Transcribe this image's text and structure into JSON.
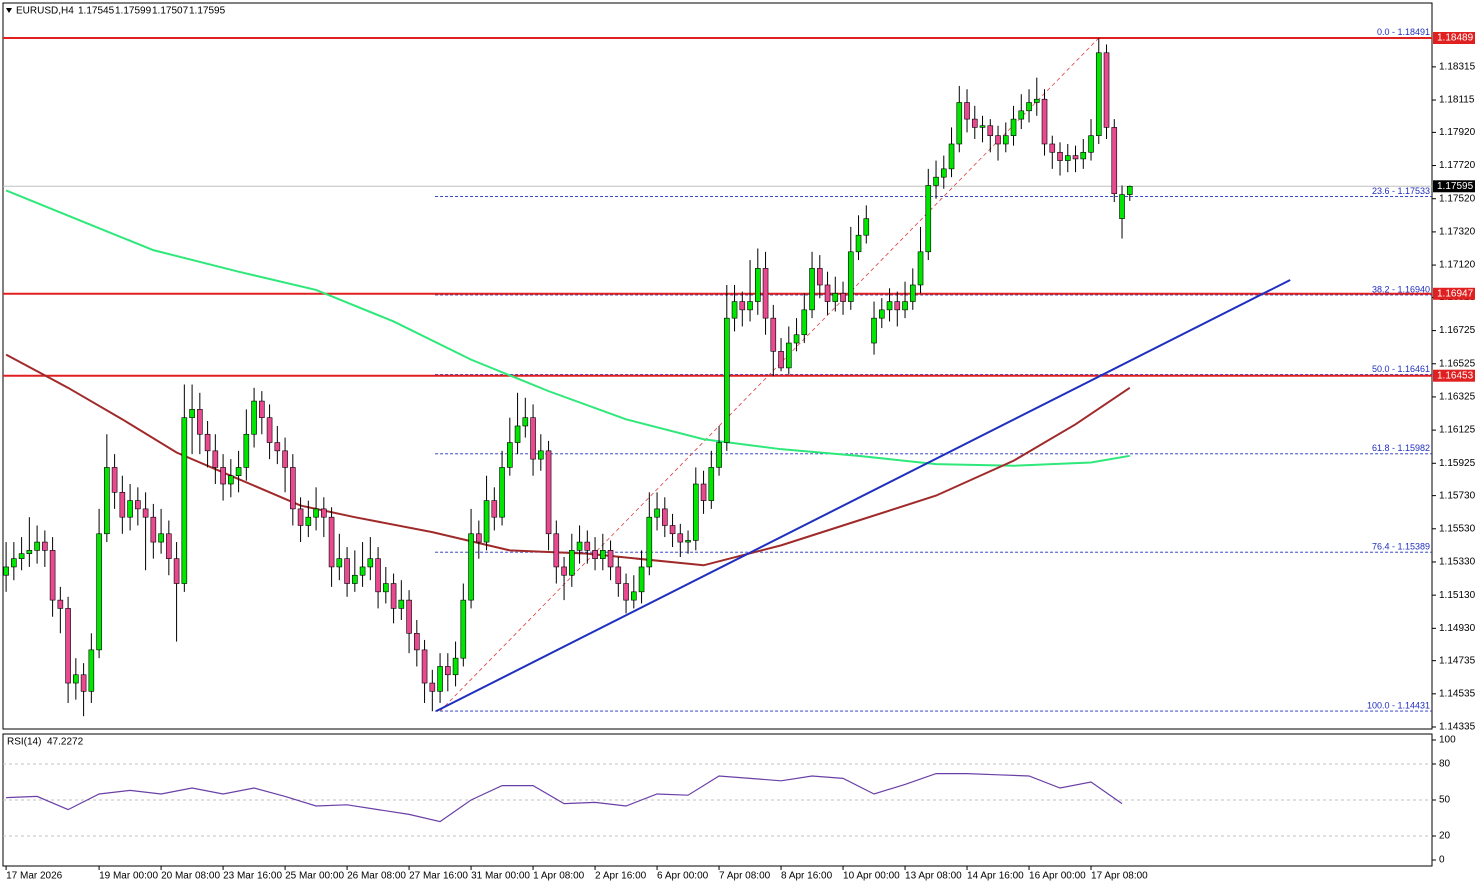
{
  "header": {
    "symbol": "EURUSD,H4"
  },
  "chart_data": {
    "type": "candlestick",
    "up_color": "#00e600",
    "down_color": "#e8498f",
    "xlim": [
      -0.4,
      184
    ],
    "ylim": [
      1.14323,
      1.187
    ],
    "yticks": [
      1.18315,
      1.18115,
      {
        "value": 1.1792,
        "label": "1.17920"
      },
      {
        "value": 1.1772,
        "label": "1.17720"
      },
      {
        "value": 1.1752,
        "label": "1.17520"
      },
      {
        "value": 1.1732,
        "label": "1.17320"
      },
      {
        "value": 1.1712,
        "label": "1.17120"
      },
      1.16925,
      1.16725,
      1.16525,
      1.16325,
      1.16125,
      1.15925,
      {
        "value": 1.1573,
        "label": "1.15730"
      },
      {
        "value": 1.1553,
        "label": "1.15530"
      },
      {
        "value": 1.1533,
        "label": "1.15330"
      },
      {
        "value": 1.1513,
        "label": "1.15130"
      },
      {
        "value": 1.1493,
        "label": "1.14930"
      },
      1.14735,
      1.14535,
      1.14335
    ],
    "xticks": [
      {
        "value": 0,
        "label": "17 Mar 2026"
      },
      {
        "value": 12,
        "label": "19 Mar 00:00"
      },
      {
        "value": 20,
        "label": "20 Mar 08:00"
      },
      {
        "value": 28,
        "label": "23 Mar 16:00"
      },
      {
        "value": 36,
        "label": "25 Mar 00:00"
      },
      {
        "value": 44,
        "label": "26 Mar 08:00"
      },
      {
        "value": 52,
        "label": "27 Mar 16:00"
      },
      {
        "value": 60,
        "label": "31 Mar 00:00"
      },
      {
        "value": 68,
        "label": "1 Apr 08:00"
      },
      {
        "value": 76,
        "label": "2 Apr 16:00"
      },
      {
        "value": 84,
        "label": "6 Apr 00:00"
      },
      {
        "value": 92,
        "label": "7 Apr 08:00"
      },
      {
        "value": 100,
        "label": "8 Apr 16:00"
      },
      {
        "value": 108,
        "label": "10 Apr 00:00"
      },
      {
        "value": 116,
        "label": "13 Apr 08:00"
      },
      {
        "value": 124,
        "label": "14 Apr 16:00"
      },
      {
        "value": 132,
        "label": "16 Apr 00:00"
      },
      {
        "value": 140,
        "label": "17 Apr 08:00"
      }
    ],
    "candles": [
      [
        1.1525,
        1.1545,
        1.1515,
        1.153
      ],
      [
        1.153,
        1.1545,
        1.1522,
        1.1535
      ],
      [
        1.1535,
        1.1548,
        1.1528,
        1.1538
      ],
      [
        1.1538,
        1.156,
        1.153,
        1.154
      ],
      [
        1.154,
        1.1555,
        1.1532,
        1.1545
      ],
      [
        1.1545,
        1.1552,
        1.153,
        1.154
      ],
      [
        1.154,
        1.1548,
        1.15,
        1.151
      ],
      [
        1.151,
        1.1518,
        1.149,
        1.1505
      ],
      [
        1.1505,
        1.1512,
        1.1448,
        1.146
      ],
      [
        1.146,
        1.1475,
        1.145,
        1.1465
      ],
      [
        1.1465,
        1.1472,
        1.144,
        1.1455
      ],
      [
        1.1455,
        1.149,
        1.1448,
        1.148
      ],
      [
        1.148,
        1.1565,
        1.1475,
        1.155
      ],
      [
        1.155,
        1.161,
        1.1545,
        1.159
      ],
      [
        1.159,
        1.1598,
        1.1565,
        1.1575
      ],
      [
        1.1575,
        1.1585,
        1.155,
        1.156
      ],
      [
        1.156,
        1.158,
        1.1552,
        1.157
      ],
      [
        1.157,
        1.1578,
        1.1555,
        1.1565
      ],
      [
        1.1565,
        1.1575,
        1.1528,
        1.156
      ],
      [
        1.156,
        1.1568,
        1.1535,
        1.1545
      ],
      [
        1.1545,
        1.1565,
        1.1538,
        1.155
      ],
      [
        1.155,
        1.1558,
        1.1525,
        1.1535
      ],
      [
        1.1535,
        1.1545,
        1.1485,
        1.152
      ],
      [
        1.152,
        1.164,
        1.1515,
        1.162
      ],
      [
        1.162,
        1.164,
        1.1598,
        1.1625
      ],
      [
        1.1625,
        1.1635,
        1.1598,
        1.161
      ],
      [
        1.161,
        1.1618,
        1.159,
        1.16
      ],
      [
        1.16,
        1.161,
        1.158,
        1.159
      ],
      [
        1.159,
        1.1598,
        1.157,
        1.158
      ],
      [
        1.158,
        1.1595,
        1.1572,
        1.1585
      ],
      [
        1.1585,
        1.16,
        1.1575,
        1.159
      ],
      [
        1.159,
        1.1625,
        1.1582,
        1.161
      ],
      [
        1.161,
        1.1638,
        1.1602,
        1.163
      ],
      [
        1.163,
        1.1636,
        1.161,
        1.162
      ],
      [
        1.162,
        1.1628,
        1.1595,
        1.1605
      ],
      [
        1.1605,
        1.1615,
        1.1592,
        1.16
      ],
      [
        1.16,
        1.1608,
        1.1575,
        1.159
      ],
      [
        1.159,
        1.1598,
        1.1555,
        1.1565
      ],
      [
        1.1565,
        1.1572,
        1.1545,
        1.1555
      ],
      [
        1.1555,
        1.157,
        1.1548,
        1.156
      ],
      [
        1.156,
        1.1578,
        1.1552,
        1.1565
      ],
      [
        1.1565,
        1.1572,
        1.1548,
        1.156
      ],
      [
        1.156,
        1.1566,
        1.1518,
        1.153
      ],
      [
        1.153,
        1.155,
        1.1522,
        1.1535
      ],
      [
        1.1535,
        1.1542,
        1.1512,
        1.152
      ],
      [
        1.152,
        1.154,
        1.1515,
        1.1525
      ],
      [
        1.1525,
        1.1545,
        1.1518,
        1.153
      ],
      [
        1.153,
        1.1548,
        1.1522,
        1.1535
      ],
      [
        1.1535,
        1.1542,
        1.1505,
        1.1515
      ],
      [
        1.1515,
        1.153,
        1.1508,
        1.152
      ],
      [
        1.152,
        1.1526,
        1.1496,
        1.1505
      ],
      [
        1.1505,
        1.1522,
        1.1498,
        1.151
      ],
      [
        1.151,
        1.1516,
        1.1478,
        1.149
      ],
      [
        1.149,
        1.1498,
        1.147,
        1.148
      ],
      [
        1.148,
        1.1486,
        1.1448,
        1.146
      ],
      [
        1.146,
        1.1468,
        1.1443,
        1.1455
      ],
      [
        1.1455,
        1.1478,
        1.1448,
        1.147
      ],
      [
        1.147,
        1.1478,
        1.1455,
        1.1465
      ],
      [
        1.1465,
        1.1485,
        1.1458,
        1.1475
      ],
      [
        1.1475,
        1.152,
        1.147,
        1.151
      ],
      [
        1.151,
        1.1565,
        1.1505,
        1.155
      ],
      [
        1.155,
        1.1558,
        1.1535,
        1.1545
      ],
      [
        1.1545,
        1.1585,
        1.154,
        1.157
      ],
      [
        1.157,
        1.1578,
        1.1552,
        1.156
      ],
      [
        1.156,
        1.16,
        1.1555,
        1.159
      ],
      [
        1.159,
        1.162,
        1.1585,
        1.1605
      ],
      [
        1.1605,
        1.1635,
        1.1598,
        1.1615
      ],
      [
        1.1615,
        1.1632,
        1.1608,
        1.162
      ],
      [
        1.162,
        1.1628,
        1.1585,
        1.1595
      ],
      [
        1.1595,
        1.161,
        1.1588,
        1.16
      ],
      [
        1.16,
        1.1606,
        1.154,
        1.155
      ],
      [
        1.155,
        1.1558,
        1.152,
        1.153
      ],
      [
        1.153,
        1.1536,
        1.151,
        1.1525
      ],
      [
        1.1525,
        1.155,
        1.1518,
        1.154
      ],
      [
        1.154,
        1.1555,
        1.1532,
        1.1545
      ],
      [
        1.1545,
        1.1552,
        1.1532,
        1.154
      ],
      [
        1.154,
        1.1548,
        1.1528,
        1.1535
      ],
      [
        1.1535,
        1.155,
        1.1528,
        1.154
      ],
      [
        1.154,
        1.1546,
        1.1522,
        1.153
      ],
      [
        1.153,
        1.1536,
        1.1512,
        1.152
      ],
      [
        1.152,
        1.1526,
        1.1502,
        1.151
      ],
      [
        1.151,
        1.1525,
        1.1505,
        1.1515
      ],
      [
        1.1515,
        1.154,
        1.1508,
        1.153
      ],
      [
        1.153,
        1.1575,
        1.1525,
        1.156
      ],
      [
        1.156,
        1.1575,
        1.1552,
        1.1565
      ],
      [
        1.1565,
        1.1572,
        1.1548,
        1.1555
      ],
      [
        1.1555,
        1.1562,
        1.1542,
        1.155
      ],
      [
        1.155,
        1.1556,
        1.1536,
        1.1545
      ],
      [
        1.1545,
        1.1552,
        1.1538,
        1.1546
      ],
      [
        1.1546,
        1.159,
        1.154,
        1.158
      ],
      [
        1.158,
        1.1588,
        1.1562,
        1.157
      ],
      [
        1.157,
        1.16,
        1.1565,
        1.159
      ],
      [
        1.159,
        1.1615,
        1.1585,
        1.1605
      ],
      [
        1.1605,
        1.17,
        1.16,
        1.168
      ],
      [
        1.168,
        1.17,
        1.1672,
        1.169
      ],
      [
        1.169,
        1.1696,
        1.1675,
        1.1685
      ],
      [
        1.1685,
        1.1715,
        1.1678,
        1.169
      ],
      [
        1.169,
        1.1722,
        1.1682,
        1.171
      ],
      [
        1.171,
        1.172,
        1.167,
        1.168
      ],
      [
        1.168,
        1.1688,
        1.1645,
        1.166
      ],
      [
        1.166,
        1.1668,
        1.1648,
        1.165
      ],
      [
        1.165,
        1.1675,
        1.1646,
        1.1665
      ],
      [
        1.1665,
        1.168,
        1.166,
        1.167
      ],
      [
        1.167,
        1.1695,
        1.1665,
        1.1685
      ],
      [
        1.1685,
        1.172,
        1.168,
        1.171
      ],
      [
        1.171,
        1.1718,
        1.1692,
        1.17
      ],
      [
        1.17,
        1.1708,
        1.1682,
        1.169
      ],
      [
        1.169,
        1.1705,
        1.1684,
        1.1695
      ],
      [
        1.1695,
        1.1702,
        1.1682,
        1.169
      ],
      [
        1.169,
        1.1735,
        1.1685,
        1.172
      ],
      [
        1.172,
        1.1742,
        1.1715,
        1.173
      ],
      [
        1.173,
        1.1748,
        1.1725,
        1.174
      ],
      [
        1.1665,
        1.169,
        1.1658,
        1.168
      ],
      [
        1.168,
        1.1692,
        1.1674,
        1.1685
      ],
      [
        1.1685,
        1.1698,
        1.1678,
        1.169
      ],
      [
        1.169,
        1.1696,
        1.1675,
        1.1685
      ],
      [
        1.1685,
        1.1702,
        1.168,
        1.169
      ],
      [
        1.169,
        1.171,
        1.1685,
        1.17
      ],
      [
        1.17,
        1.1735,
        1.1695,
        1.172
      ],
      [
        1.172,
        1.177,
        1.1715,
        1.176
      ],
      [
        1.176,
        1.1775,
        1.1752,
        1.1765
      ],
      [
        1.1765,
        1.1778,
        1.1758,
        1.177
      ],
      [
        1.177,
        1.1795,
        1.1765,
        1.1785
      ],
      [
        1.1785,
        1.182,
        1.178,
        1.181
      ],
      [
        1.181,
        1.1818,
        1.1792,
        1.18
      ],
      [
        1.18,
        1.1808,
        1.1788,
        1.1795
      ],
      [
        1.1795,
        1.1802,
        1.1786,
        1.1796
      ],
      [
        1.1796,
        1.18,
        1.178,
        1.179
      ],
      [
        1.179,
        1.1796,
        1.1775,
        1.1785
      ],
      [
        1.1785,
        1.1798,
        1.178,
        1.179
      ],
      [
        1.179,
        1.1808,
        1.1784,
        1.18
      ],
      [
        1.18,
        1.1815,
        1.1794,
        1.1805
      ],
      [
        1.1805,
        1.1818,
        1.1798,
        1.181
      ],
      [
        1.181,
        1.1825,
        1.1802,
        1.1812
      ],
      [
        1.1812,
        1.1818,
        1.1778,
        1.1785
      ],
      [
        1.1785,
        1.179,
        1.177,
        1.178
      ],
      [
        1.178,
        1.1786,
        1.1766,
        1.1775
      ],
      [
        1.1775,
        1.1785,
        1.1768,
        1.1778
      ],
      [
        1.1778,
        1.1784,
        1.1768,
        1.1776
      ],
      [
        1.1776,
        1.1788,
        1.177,
        1.178
      ],
      [
        1.178,
        1.18,
        1.1775,
        1.179
      ],
      [
        1.179,
        1.18489,
        1.1785,
        1.184
      ],
      [
        1.184,
        1.1845,
        1.1788,
        1.1795
      ],
      [
        1.1795,
        1.18,
        1.175,
        1.1755
      ],
      [
        1.174,
        1.176,
        1.1728,
        1.17545
      ],
      [
        1.17545,
        1.17599,
        1.17507,
        1.17595
      ]
    ],
    "levels": [
      {
        "value": 1.18489,
        "color": "#e02020"
      },
      {
        "value": 1.16947,
        "color": "#e02020"
      },
      {
        "value": 1.16453,
        "color": "#e02020"
      }
    ],
    "fib_levels": [
      {
        "value": 1.18491,
        "label": "0.0 - 1.18491"
      },
      {
        "value": 1.17533,
        "label": "23.6 - 1.17533"
      },
      {
        "value": 1.1694,
        "label": "38.2 - 1.16940"
      },
      {
        "value": 1.16461,
        "label": "50.0 - 1.16461"
      },
      {
        "value": 1.15982,
        "label": "61.8 - 1.15982"
      },
      {
        "value": 1.15389,
        "label": "76.4 - 1.15389"
      },
      {
        "value": 1.14431,
        "label": "100.0 - 1.14431"
      }
    ],
    "fib_range": {
      "x": [
        56,
        141
      ],
      "values": [
        1.14431,
        1.18489
      ],
      "color": "#e04040"
    },
    "trendline": {
      "x": [
        55.5,
        165.7
      ],
      "values": [
        1.14431,
        1.1703
      ],
      "color": "#1f2fbf"
    },
    "moving_averages": [
      {
        "color": "#2ee87a",
        "x": [
          0,
          10,
          19,
          30,
          40,
          50,
          60,
          70,
          80,
          90,
          100,
          110,
          120,
          130,
          140,
          145
        ],
        "values": [
          1.1757,
          1.1738,
          1.1721,
          1.1708,
          1.1697,
          1.1678,
          1.1655,
          1.1636,
          1.1619,
          1.1607,
          1.1601,
          1.1597,
          1.1592,
          1.1591,
          1.1593,
          1.1597
        ]
      },
      {
        "color": "#a02a2a",
        "x": [
          0,
          8,
          15,
          22,
          30,
          38,
          45,
          55,
          65,
          75,
          90,
          100,
          110,
          120,
          130,
          138,
          145
        ],
        "values": [
          1.1658,
          1.1638,
          1.1619,
          1.1599,
          1.1583,
          1.1567,
          1.156,
          1.1551,
          1.154,
          1.1538,
          1.1531,
          1.1543,
          1.1558,
          1.1573,
          1.1594,
          1.1616,
          1.1638
        ]
      }
    ],
    "rsi": {
      "label": "RSI(14)",
      "current": 47.2272,
      "color": "#6a3fa6",
      "ylim": [
        -5,
        105
      ],
      "yticks": [
        100,
        80,
        50,
        20,
        0
      ],
      "levels": [
        80,
        50,
        20
      ],
      "x": [
        0,
        4,
        8,
        12,
        16,
        20,
        24,
        28,
        32,
        36,
        40,
        44,
        48,
        52,
        56,
        60,
        64,
        68,
        72,
        76,
        80,
        84,
        88,
        92,
        96,
        100,
        104,
        108,
        112,
        116,
        120,
        124,
        128,
        132,
        136,
        140,
        144
      ],
      "values": [
        52,
        53,
        42,
        55,
        58,
        55,
        60,
        55,
        60,
        53,
        45,
        46,
        42,
        38,
        32,
        50,
        62,
        62,
        47,
        48,
        45,
        55,
        54,
        70,
        68,
        66,
        70,
        68,
        55,
        63,
        72,
        72,
        71,
        70,
        60,
        65,
        47
      ]
    }
  }
}
